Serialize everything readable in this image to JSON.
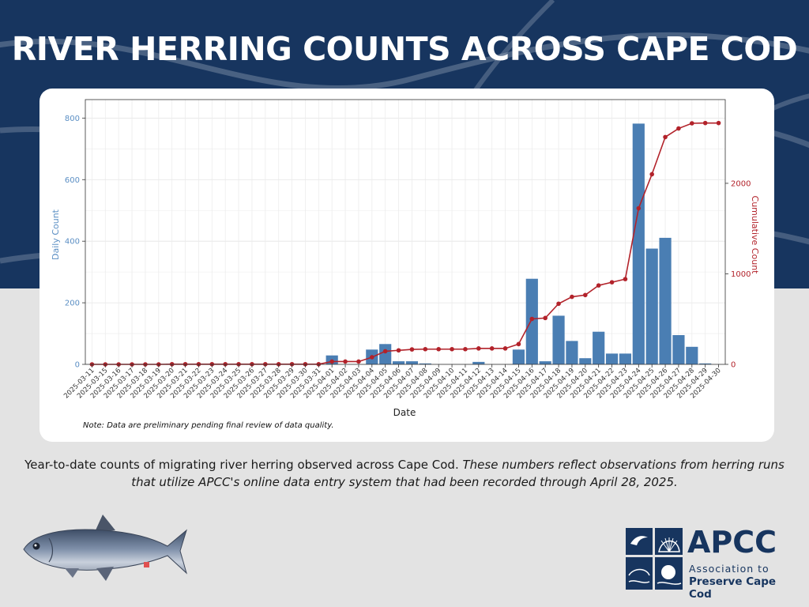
{
  "header": {
    "title": "RIVER HERRING COUNTS ACROSS CAPE COD"
  },
  "note": "Note: Data are preliminary pending final review of data quality.",
  "caption": {
    "regular": "Year-to-date counts of migrating river herring observed across Cape Cod. ",
    "italic": "These numbers reflect observations from herring runs that utilize APCC's online data entry system that had been recorded through April 28, 2025."
  },
  "logo": {
    "name": "APCC",
    "line1": "Association to",
    "line2": "Preserve Cape Cod"
  },
  "colors": {
    "header_bg": "#17355f",
    "bar": "#4a7eb3",
    "line": "#b2222a",
    "left_axis": "#5b8fc4",
    "right_axis": "#b2222a",
    "background": "#e3e3e3"
  },
  "icons": [
    "river-herring-fish-icon",
    "apcc-logo-icon"
  ],
  "chart_data": {
    "type": "bar",
    "secondary_type": "line",
    "title": "",
    "xlabel": "Date",
    "ylabel": "Daily Count",
    "y2label": "Cumulative Count",
    "ylim": [
      0,
      860
    ],
    "y2lim": [
      0,
      2925
    ],
    "yticks": [
      0,
      200,
      400,
      600,
      800
    ],
    "y2ticks": [
      0,
      1000,
      2000
    ],
    "grid": true,
    "categories": [
      "2025-03-11",
      "2025-03-15",
      "2025-03-16",
      "2025-03-17",
      "2025-03-18",
      "2025-03-19",
      "2025-03-20",
      "2025-03-21",
      "2025-03-22",
      "2025-03-23",
      "2025-03-24",
      "2025-03-25",
      "2025-03-26",
      "2025-03-27",
      "2025-03-28",
      "2025-03-29",
      "2025-03-30",
      "2025-03-31",
      "2025-04-01",
      "2025-04-02",
      "2025-04-03",
      "2025-04-04",
      "2025-04-05",
      "2025-04-06",
      "2025-04-07",
      "2025-04-08",
      "2025-04-09",
      "2025-04-10",
      "2025-04-11",
      "2025-04-12",
      "2025-04-13",
      "2025-04-14",
      "2025-04-15",
      "2025-04-16",
      "2025-04-17",
      "2025-04-18",
      "2025-04-19",
      "2025-04-20",
      "2025-04-21",
      "2025-04-22",
      "2025-04-23",
      "2025-04-24",
      "2025-04-25",
      "2025-04-26",
      "2025-04-27",
      "2025-04-28",
      "2025-04-29",
      "2025-04-30"
    ],
    "series": [
      {
        "name": "Daily Count",
        "type": "bar",
        "values": [
          0,
          0,
          0,
          0,
          0,
          0,
          2,
          0,
          0,
          0,
          0,
          0,
          0,
          0,
          0,
          0,
          0,
          0,
          29,
          0,
          0,
          48,
          66,
          10,
          10,
          3,
          0,
          0,
          0,
          8,
          0,
          0,
          48,
          278,
          10,
          158,
          76,
          20,
          106,
          35,
          35,
          782,
          376,
          411,
          95,
          57,
          3,
          0
        ]
      },
      {
        "name": "Cumulative Count",
        "type": "line",
        "values": [
          0,
          0,
          0,
          0,
          0,
          0,
          2,
          2,
          2,
          2,
          2,
          2,
          2,
          2,
          2,
          2,
          2,
          2,
          31,
          31,
          31,
          79,
          145,
          155,
          165,
          168,
          168,
          168,
          168,
          176,
          176,
          176,
          224,
          502,
          512,
          670,
          746,
          766,
          872,
          907,
          942,
          1724,
          2100,
          2511,
          2606,
          2663,
          2666,
          2666
        ]
      }
    ]
  }
}
